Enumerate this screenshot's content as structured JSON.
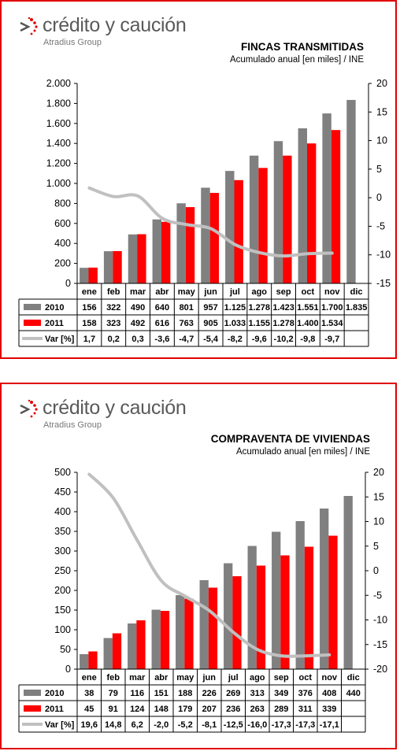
{
  "brand": {
    "name": "crédito y caución",
    "group": "Atradius Group"
  },
  "colors": {
    "s2010": "#808080",
    "s2011": "#ff0000",
    "var": "#c0c0c0",
    "frame": "#e00000"
  },
  "charts": [
    {
      "title": "FINCAS TRANSMITIDAS",
      "subtitle": "Acumulado anual [en miles] / INE"
    },
    {
      "title": "COMPRAVENTA DE VIVIENDAS",
      "subtitle": "Acumulado anual [en miles] / INE"
    }
  ],
  "chart_data": [
    {
      "type": "bar",
      "title": "FINCAS TRANSMITIDAS",
      "subtitle": "Acumulado anual [en miles] / INE",
      "categories": [
        "ene",
        "feb",
        "mar",
        "abr",
        "may",
        "jun",
        "jul",
        "ago",
        "sep",
        "oct",
        "nov",
        "dic"
      ],
      "series": [
        {
          "name": "2010",
          "values": [
            156,
            322,
            490,
            640,
            801,
            957,
            1125,
            1278,
            1423,
            1551,
            1700,
            1835
          ],
          "labels": [
            "156",
            "322",
            "490",
            "640",
            "801",
            "957",
            "1.125",
            "1.278",
            "1.423",
            "1.551",
            "1.700",
            "1.835"
          ]
        },
        {
          "name": "2011",
          "values": [
            158,
            323,
            492,
            616,
            763,
            905,
            1033,
            1155,
            1278,
            1400,
            1534,
            null
          ],
          "labels": [
            "158",
            "323",
            "492",
            "616",
            "763",
            "905",
            "1.033",
            "1.155",
            "1.278",
            "1.400",
            "1.534",
            ""
          ]
        },
        {
          "name": "Var [%]",
          "type": "line",
          "axis": "right",
          "values": [
            1.7,
            0.2,
            0.3,
            -3.6,
            -4.7,
            -5.4,
            -8.2,
            -9.6,
            -10.2,
            -9.8,
            -9.7,
            null
          ],
          "labels": [
            "1,7",
            "0,2",
            "0,3",
            "-3,6",
            "-4,7",
            "-5,4",
            "-8,2",
            "-9,6",
            "-10,2",
            "-9,8",
            "-9,7",
            ""
          ]
        }
      ],
      "ylim": [
        0,
        2000
      ],
      "yticks": [
        0,
        200,
        400,
        600,
        800,
        1000,
        1200,
        1400,
        1600,
        1800,
        2000
      ],
      "ytick_labels": [
        "0",
        "200",
        "400",
        "600",
        "800",
        "1.000",
        "1.200",
        "1.400",
        "1.600",
        "1.800",
        "2.000"
      ],
      "y2lim": [
        -15,
        20
      ],
      "y2ticks": [
        -15,
        -10,
        -5,
        0,
        5,
        10,
        15,
        20
      ],
      "y2tick_labels": [
        "-15",
        "-10",
        "-5",
        "0",
        "5",
        "10",
        "15",
        "20"
      ],
      "grid": false,
      "legend": "data-table"
    },
    {
      "type": "bar",
      "title": "COMPRAVENTA DE VIVIENDAS",
      "subtitle": "Acumulado anual [en miles] / INE",
      "categories": [
        "ene",
        "feb",
        "mar",
        "abr",
        "may",
        "jun",
        "jul",
        "ago",
        "sep",
        "oct",
        "nov",
        "dic"
      ],
      "series": [
        {
          "name": "2010",
          "values": [
            38,
            79,
            116,
            151,
            188,
            226,
            269,
            313,
            349,
            376,
            408,
            440
          ],
          "labels": [
            "38",
            "79",
            "116",
            "151",
            "188",
            "226",
            "269",
            "313",
            "349",
            "376",
            "408",
            "440"
          ]
        },
        {
          "name": "2011",
          "values": [
            45,
            91,
            124,
            148,
            179,
            207,
            236,
            263,
            289,
            311,
            339,
            null
          ],
          "labels": [
            "45",
            "91",
            "124",
            "148",
            "179",
            "207",
            "236",
            "263",
            "289",
            "311",
            "339",
            ""
          ]
        },
        {
          "name": "Var [%]",
          "type": "line",
          "axis": "right",
          "values": [
            19.6,
            14.8,
            6.2,
            -2.0,
            -5.2,
            -8.1,
            -12.5,
            -16.0,
            -17.3,
            -17.3,
            -17.1,
            null
          ],
          "labels": [
            "19,6",
            "14,8",
            "6,2",
            "-2,0",
            "-5,2",
            "-8,1",
            "-12,5",
            "-16,0",
            "-17,3",
            "-17,3",
            "-17,1",
            ""
          ]
        }
      ],
      "ylim": [
        0,
        500
      ],
      "yticks": [
        0,
        50,
        100,
        150,
        200,
        250,
        300,
        350,
        400,
        450,
        500
      ],
      "ytick_labels": [
        "0",
        "50",
        "100",
        "150",
        "200",
        "250",
        "300",
        "350",
        "400",
        "450",
        "500"
      ],
      "y2lim": [
        -20,
        20
      ],
      "y2ticks": [
        -20,
        -15,
        -10,
        -5,
        0,
        5,
        10,
        15,
        20
      ],
      "y2tick_labels": [
        "-20",
        "-15",
        "-10",
        "-5",
        "0",
        "5",
        "10",
        "15",
        "20"
      ],
      "grid": false,
      "legend": "data-table"
    }
  ]
}
